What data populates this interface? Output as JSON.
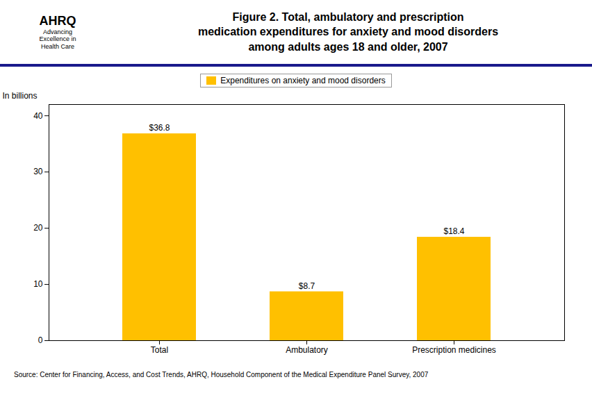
{
  "chart_data": {
    "type": "bar",
    "title": "Figure 2. Total, ambulatory and prescription\nmedication expenditures for anxiety and mood disorders\namong adults ages 18 and older, 2007",
    "categories": [
      "Total",
      "Ambulatory",
      "Prescription medicines"
    ],
    "series": [
      {
        "name": "Expenditures on anxiety and mood disorders",
        "color": "#FFC000",
        "values": [
          36.8,
          8.7,
          18.4
        ],
        "value_labels": [
          "$36.8",
          "$8.7",
          "$18.4"
        ]
      }
    ],
    "ylabel": "In billions",
    "ylim": [
      0,
      42
    ],
    "yticks": [
      0,
      10,
      20,
      30,
      40
    ],
    "grid": false,
    "legend": "top",
    "data_labels": true,
    "annotations": [
      "AHRQ",
      "Advancing\nExcellence in\nHealth Care",
      "Source: Center for Financing, Access, and Cost Trends, AHRQ, Household Component of the Medical Expenditure Panel Survey, 2007"
    ]
  }
}
